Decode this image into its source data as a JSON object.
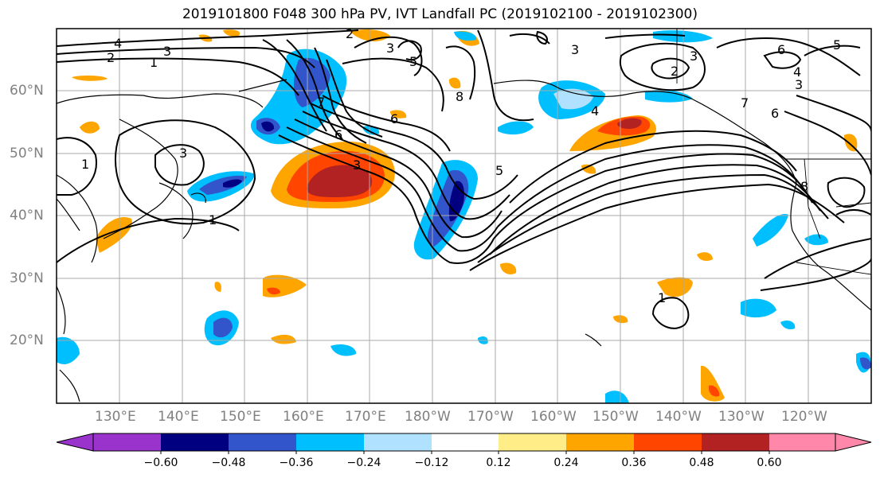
{
  "title": "2019101800 F048 300 hPa PV, IVT Landfall PC (2019102100 - 2019102300)",
  "map": {
    "lat_labels": [
      "60°N",
      "50°N",
      "40°N",
      "30°N",
      "20°N"
    ],
    "lon_labels": [
      "130°E",
      "140°E",
      "150°E",
      "160°E",
      "170°E",
      "180°W",
      "170°W",
      "160°W",
      "150°W",
      "140°W",
      "130°W",
      "120°W"
    ],
    "contour_labels": [
      "4",
      "3",
      "2",
      "1",
      "3",
      "5",
      "7",
      "8",
      "6",
      "2",
      "6",
      "3",
      "3",
      "2",
      "4",
      "5",
      "6",
      "7",
      "8",
      "3",
      "1",
      "1",
      "3",
      "5",
      "6",
      "4",
      "3",
      "1"
    ]
  },
  "colorbar": {
    "colors": [
      "#9933cc",
      "#000080",
      "#3355cc",
      "#00bfff",
      "#b0e2ff",
      "#ffffff",
      "#ffee88",
      "#ffa500",
      "#ff4500",
      "#b22222",
      "#ff88aa"
    ],
    "ticks": [
      "−0.60",
      "−0.48",
      "−0.36",
      "−0.24",
      "−0.12",
      "0.12",
      "0.24",
      "0.36",
      "0.48",
      "0.60"
    ]
  }
}
